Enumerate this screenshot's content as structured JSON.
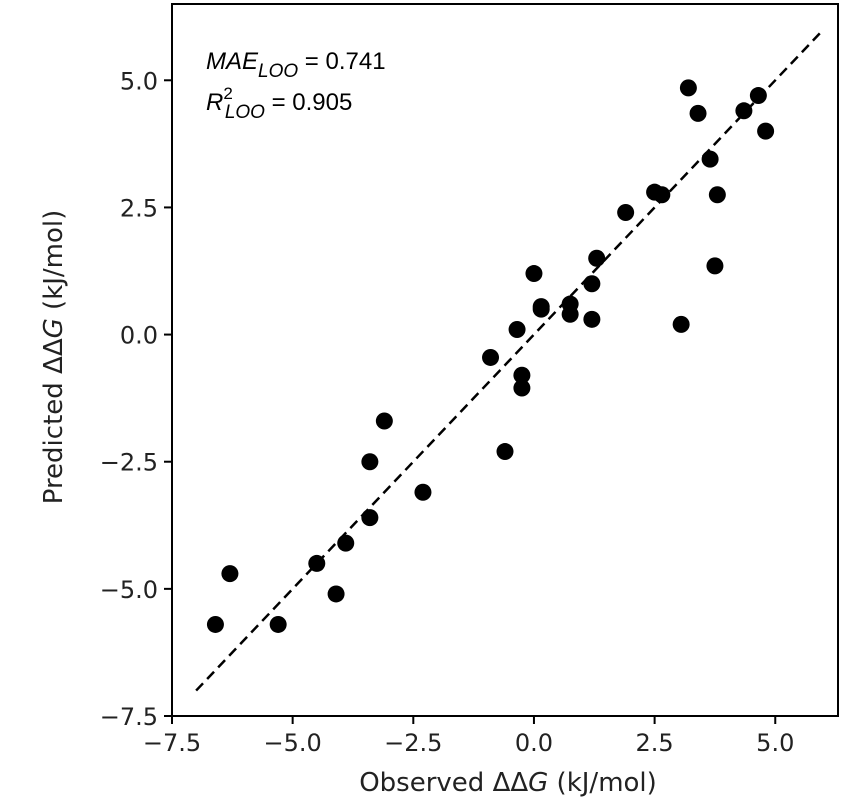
{
  "chart_data": {
    "type": "scatter",
    "xlabel_prefix": "Observed ",
    "xlabel_sym": "ΔΔ",
    "xlabel_var": "G",
    "xlabel_unit": " (kJ/mol)",
    "ylabel_prefix": "Predicted ",
    "ylabel_sym": "ΔΔ",
    "ylabel_var": "G",
    "ylabel_unit": " (kJ/mol)",
    "xlim": [
      -7.5,
      6.3
    ],
    "ylim": [
      -7.5,
      6.5
    ],
    "xticks": [
      -7.5,
      -5.0,
      -2.5,
      0.0,
      2.5,
      5.0
    ],
    "yticks": [
      -7.5,
      -5.0,
      -2.5,
      0.0,
      2.5,
      5.0
    ],
    "xtick_labels": [
      "−7.5",
      "−5.0",
      "−2.5",
      "0.0",
      "2.5",
      "5.0"
    ],
    "ytick_labels": [
      "−7.5",
      "−5.0",
      "−2.5",
      "0.0",
      "2.5",
      "5.0"
    ],
    "grid": false,
    "reference_line": {
      "style": "dashed",
      "from": [
        -7.0,
        -7.0
      ],
      "to": [
        6.0,
        6.0
      ]
    },
    "annotations": {
      "mae_label": "MAE",
      "mae_sub": "LOO",
      "mae_value": " = 0.741",
      "r2_label": "R",
      "r2_sup": "2",
      "r2_sub": "LOO",
      "r2_value": " = 0.905"
    },
    "points": [
      {
        "x": -6.6,
        "y": -5.7
      },
      {
        "x": -6.3,
        "y": -4.7
      },
      {
        "x": -5.3,
        "y": -5.7
      },
      {
        "x": -4.5,
        "y": -4.5
      },
      {
        "x": -4.1,
        "y": -5.1
      },
      {
        "x": -3.9,
        "y": -4.1
      },
      {
        "x": -3.4,
        "y": -3.6
      },
      {
        "x": -3.4,
        "y": -2.5
      },
      {
        "x": -3.1,
        "y": -1.7
      },
      {
        "x": -2.3,
        "y": -3.1
      },
      {
        "x": -0.9,
        "y": -0.45
      },
      {
        "x": -0.6,
        "y": -2.3
      },
      {
        "x": -0.35,
        "y": 0.1
      },
      {
        "x": -0.25,
        "y": -0.8
      },
      {
        "x": -0.25,
        "y": -1.05
      },
      {
        "x": 0.0,
        "y": 1.2
      },
      {
        "x": 0.15,
        "y": 0.55
      },
      {
        "x": 0.15,
        "y": 0.5
      },
      {
        "x": 0.75,
        "y": 0.6
      },
      {
        "x": 0.75,
        "y": 0.4
      },
      {
        "x": 1.2,
        "y": 1.0
      },
      {
        "x": 1.2,
        "y": 0.3
      },
      {
        "x": 1.3,
        "y": 1.5
      },
      {
        "x": 1.9,
        "y": 2.4
      },
      {
        "x": 2.5,
        "y": 2.8
      },
      {
        "x": 2.65,
        "y": 2.75
      },
      {
        "x": 3.05,
        "y": 0.2
      },
      {
        "x": 3.2,
        "y": 4.85
      },
      {
        "x": 3.4,
        "y": 4.35
      },
      {
        "x": 3.65,
        "y": 3.45
      },
      {
        "x": 3.75,
        "y": 1.35
      },
      {
        "x": 3.8,
        "y": 2.75
      },
      {
        "x": 4.35,
        "y": 4.4
      },
      {
        "x": 4.65,
        "y": 4.7
      },
      {
        "x": 4.8,
        "y": 4.0
      }
    ]
  }
}
